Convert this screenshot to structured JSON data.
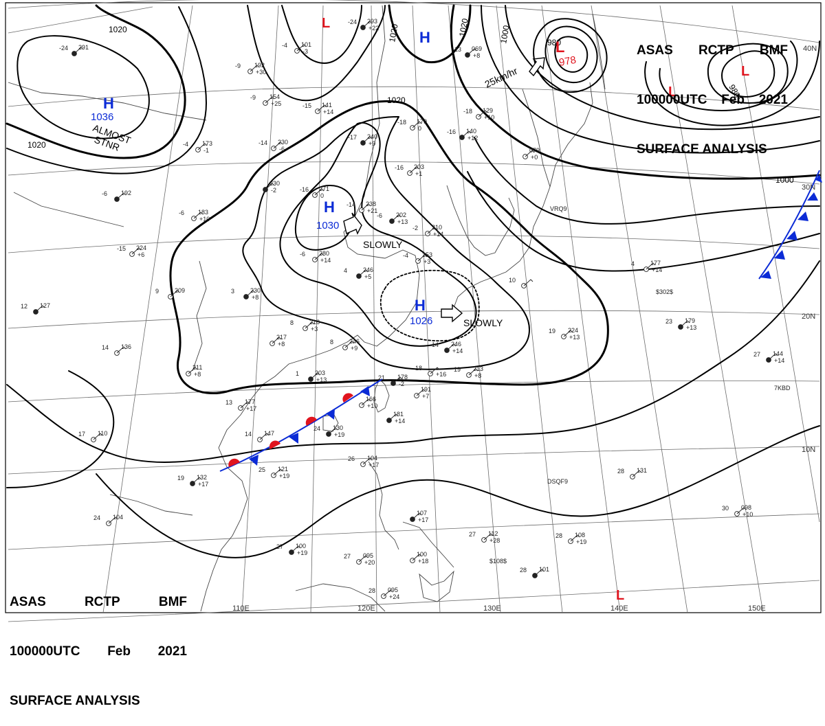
{
  "header": {
    "agency": "ASAS",
    "center": "RCTP",
    "source": "BMF",
    "time": "100000UTC",
    "month": "Feb",
    "year": "2021",
    "title": "SURFACE ANALYSIS"
  },
  "lon_labels": [
    "110E",
    "120E",
    "130E",
    "140E",
    "150E"
  ],
  "lat_labels": [
    "40N",
    "30N",
    "20N",
    "10N"
  ],
  "isobar_labels": [
    "1020",
    "1020",
    "1020",
    "1020",
    "1020",
    "1000",
    "1000",
    "980",
    "980"
  ],
  "pressure_centers": [
    {
      "type": "H",
      "value": "1036",
      "color": "#0b2bd6"
    },
    {
      "type": "H",
      "value": "1030",
      "color": "#0b2bd6"
    },
    {
      "type": "H",
      "value": "1026",
      "color": "#0b2bd6"
    },
    {
      "type": "H",
      "value": "",
      "color": "#0b2bd6"
    },
    {
      "type": "L",
      "value": "978",
      "color": "#e0141e"
    },
    {
      "type": "L",
      "value": "",
      "color": "#e0141e"
    },
    {
      "type": "L",
      "value": "",
      "color": "#e0141e"
    },
    {
      "type": "L",
      "value": "",
      "color": "#e0141e"
    },
    {
      "type": "L",
      "value": "",
      "color": "#e0141e"
    }
  ],
  "movements": [
    "ALMOST",
    "STNR",
    "SLOWLY",
    "SLOWLY",
    "25km/hr"
  ],
  "station_plots": [
    {
      "t": "-24",
      "p": "291",
      "d": ""
    },
    {
      "t": "-9",
      "p": "192",
      "d": "+30"
    },
    {
      "t": "-4",
      "p": "101",
      "d": "-3"
    },
    {
      "t": "-24",
      "p": "293",
      "d": "+22"
    },
    {
      "t": "-9",
      "p": "154",
      "d": "+25"
    },
    {
      "t": "-15",
      "p": "141",
      "d": "+14"
    },
    {
      "t": "-13",
      "p": "069",
      "d": "+8"
    },
    {
      "t": "-18",
      "p": "129",
      "d": "+10"
    },
    {
      "t": "-18",
      "p": "179",
      "d": "0"
    },
    {
      "t": "-17",
      "p": "240",
      "d": "+9"
    },
    {
      "t": "-14",
      "p": "230",
      "d": "-6"
    },
    {
      "t": "-4",
      "p": "173",
      "d": "-1"
    },
    {
      "t": "-16",
      "p": "140",
      "d": "+12"
    },
    {
      "t": "-16",
      "p": "203",
      "d": "+1"
    },
    {
      "t": "",
      "p": "079",
      "d": "+0"
    },
    {
      "t": "",
      "p": "230",
      "d": "-2"
    },
    {
      "t": "-16",
      "p": "271",
      "d": "0"
    },
    {
      "t": "-14",
      "p": "238",
      "d": "+21"
    },
    {
      "t": "-6",
      "p": "202",
      "d": "+13"
    },
    {
      "t": "-2",
      "p": "210",
      "d": "+14"
    },
    {
      "t": "-6",
      "p": "183",
      "d": "+10"
    },
    {
      "t": "-6",
      "p": "192",
      "d": ""
    },
    {
      "t": "-6",
      "p": "280",
      "d": "+14"
    },
    {
      "t": "-4",
      "p": "253",
      "d": "+3"
    },
    {
      "t": "4",
      "p": "246",
      "d": "+5"
    },
    {
      "t": "-15",
      "p": "224",
      "d": "+6"
    },
    {
      "t": "9",
      "p": "209",
      "d": ""
    },
    {
      "t": "3",
      "p": "230",
      "d": "+8"
    },
    {
      "t": "8",
      "p": "218",
      "d": "+3"
    },
    {
      "t": "8",
      "p": "246",
      "d": "+9"
    },
    {
      "t": "14",
      "p": "246",
      "d": "+14"
    },
    {
      "t": "10",
      "p": "",
      "d": ""
    },
    {
      "t": "4",
      "p": "177",
      "d": "+14"
    },
    {
      "t": "12",
      "p": "127",
      "d": ""
    },
    {
      "t": "14",
      "p": "136",
      "d": ""
    },
    {
      "t": "19",
      "p": "224",
      "d": "+13"
    },
    {
      "t": "23",
      "p": "179",
      "d": "+13"
    },
    {
      "t": "",
      "p": "217",
      "d": "+8"
    },
    {
      "t": "",
      "p": "211",
      "d": "+8"
    },
    {
      "t": "1",
      "p": "203",
      "d": "+13"
    },
    {
      "t": "18",
      "p": "",
      "d": "+16"
    },
    {
      "t": "19",
      "p": "213",
      "d": "+8"
    },
    {
      "t": "21",
      "p": "178",
      "d": "-2"
    },
    {
      "t": "",
      "p": "191",
      "d": "+7"
    },
    {
      "t": "",
      "p": "166",
      "d": "+10"
    },
    {
      "t": "",
      "p": "181",
      "d": "+14"
    },
    {
      "t": "13",
      "p": "177",
      "d": "+17"
    },
    {
      "t": "14",
      "p": "147",
      "d": ""
    },
    {
      "t": "24",
      "p": "130",
      "d": "+19"
    },
    {
      "t": "17",
      "p": "110",
      "d": ""
    },
    {
      "t": "25",
      "p": "121",
      "d": "+19"
    },
    {
      "t": "19",
      "p": "132",
      "d": "+17"
    },
    {
      "t": "26",
      "p": "104",
      "d": "+17"
    },
    {
      "t": "28",
      "p": "131",
      "d": ""
    },
    {
      "t": "27",
      "p": "144",
      "d": "+14"
    },
    {
      "t": "30",
      "p": "098",
      "d": "+10"
    },
    {
      "t": "24",
      "p": "104",
      "d": ""
    },
    {
      "t": "",
      "p": "107",
      "d": "+17"
    },
    {
      "t": "27",
      "p": "112",
      "d": "+28"
    },
    {
      "t": "28",
      "p": "108",
      "d": "+19"
    },
    {
      "t": "27",
      "p": "100",
      "d": "+19"
    },
    {
      "t": "27",
      "p": "095",
      "d": "+20"
    },
    {
      "t": "",
      "p": "100",
      "d": "+18"
    },
    {
      "t": "28",
      "p": "101",
      "d": ""
    },
    {
      "t": "28",
      "p": "095",
      "d": "+24"
    }
  ],
  "remarks": [
    "DSQF9",
    "7KBD",
    "VRQ9",
    "$302$",
    "$108$"
  ],
  "colors": {
    "high": "#0b2bd6",
    "low": "#e0141e",
    "warm_front": "#e0141e",
    "cold_front": "#0b2bd6",
    "isobar": "#000000",
    "grid": "#555555",
    "coast": "#444444"
  },
  "icons": [
    "station-circle-icon",
    "wind-barb-icon",
    "movement-arrow-icon",
    "warm-front-icon",
    "cold-front-icon"
  ]
}
